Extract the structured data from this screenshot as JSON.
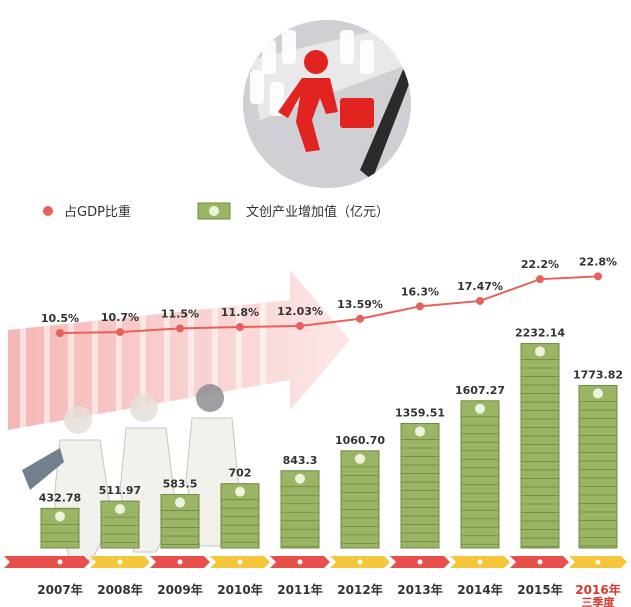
{
  "legend": {
    "gdp_share_label": "占GDP比重",
    "value_added_label": "文创产业增加值（亿元）"
  },
  "chart_data": {
    "type": "bar",
    "categories": [
      "2007年",
      "2008年",
      "2009年",
      "2010年",
      "2011年",
      "2012年",
      "2013年",
      "2014年",
      "2015年",
      "2016年"
    ],
    "category_sublabels": [
      "",
      "",
      "",
      "",
      "",
      "",
      "",
      "",
      "",
      "三季度"
    ],
    "series": [
      {
        "name": "文创产业增加值（亿元）",
        "type": "bar",
        "values": [
          432.78,
          511.97,
          583.5,
          702,
          843.3,
          1060.7,
          1359.51,
          1607.27,
          2232.14,
          1773.82
        ],
        "labels": [
          "432.78",
          "511.97",
          "583.5",
          "702",
          "843.3",
          "1060.70",
          "1359.51",
          "1607.27",
          "2232.14",
          "1773.82"
        ]
      },
      {
        "name": "占GDP比重",
        "type": "line",
        "values": [
          10.5,
          10.7,
          11.5,
          11.8,
          12.03,
          13.59,
          16.3,
          17.47,
          22.2,
          22.8
        ],
        "labels": [
          "10.5%",
          "10.7%",
          "11.5%",
          "11.8%",
          "12.03%",
          "13.59%",
          "16.3%",
          "17.47%",
          "22.2%",
          "22.8%"
        ]
      }
    ],
    "colors": {
      "line": "#e8605a",
      "bill": "#9bb566",
      "bill_dark": "#6f8a3e",
      "bill_light": "#eef3dc",
      "timeline_red": "#e94f4a",
      "timeline_yellow": "#f5c63a",
      "year_text": "#333333",
      "highlight_year": "#d9362e"
    },
    "highlight_category_index": 9
  }
}
